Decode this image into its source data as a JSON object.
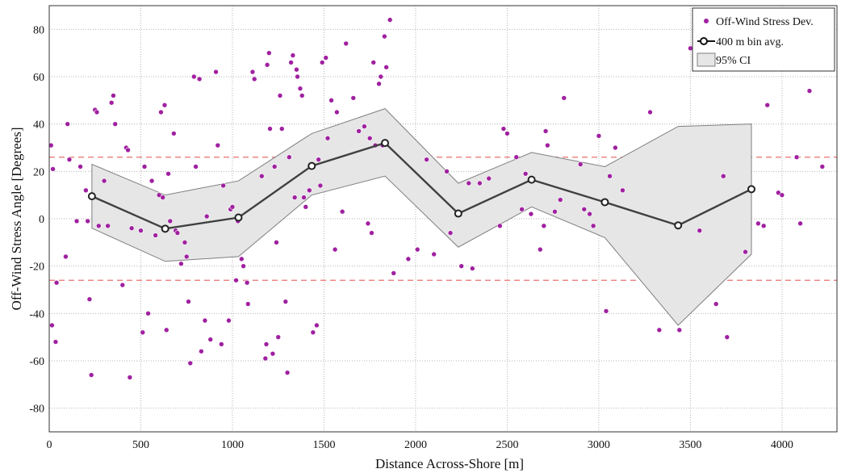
{
  "chart_data": {
    "type": "scatter",
    "xlabel": "Distance Across-Shore [m]",
    "ylabel": "Off-Wind Stress Angle [Degrees]",
    "xlim": [
      0,
      4300
    ],
    "ylim": [
      -90,
      90
    ],
    "xticks": [
      0,
      500,
      1000,
      1500,
      2000,
      2500,
      3000,
      3500,
      4000
    ],
    "yticks": [
      -80,
      -60,
      -40,
      -20,
      0,
      20,
      40,
      60,
      80
    ],
    "grid": true,
    "legend_position": "top-right",
    "reference_lines": [
      26,
      -26
    ],
    "colors": {
      "scatter": "#a020a0",
      "avg_line": "#404040",
      "ci_fill": "#e6e6e6",
      "ci_edge": "#7f7f7f",
      "reference": "#e8706e"
    },
    "series": [
      {
        "name": "Off-Wind Stress Dev.",
        "kind": "scatter",
        "points": [
          [
            10,
            31
          ],
          [
            15,
            -45
          ],
          [
            20,
            21
          ],
          [
            35,
            -52
          ],
          [
            40,
            -27
          ],
          [
            90,
            -16
          ],
          [
            100,
            40
          ],
          [
            110,
            25
          ],
          [
            150,
            -1
          ],
          [
            170,
            22
          ],
          [
            200,
            12
          ],
          [
            210,
            -1
          ],
          [
            220,
            -34
          ],
          [
            230,
            -66
          ],
          [
            250,
            46
          ],
          [
            260,
            45
          ],
          [
            270,
            -3
          ],
          [
            300,
            16
          ],
          [
            320,
            -3
          ],
          [
            340,
            49
          ],
          [
            350,
            52
          ],
          [
            360,
            40
          ],
          [
            400,
            -28
          ],
          [
            420,
            30
          ],
          [
            430,
            29
          ],
          [
            440,
            -67
          ],
          [
            450,
            -4
          ],
          [
            500,
            -5
          ],
          [
            510,
            -48
          ],
          [
            520,
            22
          ],
          [
            540,
            -40
          ],
          [
            560,
            16
          ],
          [
            580,
            -7
          ],
          [
            600,
            10
          ],
          [
            610,
            45
          ],
          [
            620,
            9
          ],
          [
            630,
            48
          ],
          [
            640,
            -47
          ],
          [
            650,
            19
          ],
          [
            660,
            -1
          ],
          [
            680,
            36
          ],
          [
            690,
            -5
          ],
          [
            700,
            -6
          ],
          [
            720,
            -19
          ],
          [
            740,
            -10
          ],
          [
            750,
            -16
          ],
          [
            760,
            -35
          ],
          [
            770,
            -61
          ],
          [
            790,
            60
          ],
          [
            800,
            22
          ],
          [
            820,
            59
          ],
          [
            830,
            -56
          ],
          [
            850,
            -43
          ],
          [
            860,
            1
          ],
          [
            880,
            -51
          ],
          [
            910,
            62
          ],
          [
            920,
            31
          ],
          [
            940,
            -53
          ],
          [
            950,
            14
          ],
          [
            980,
            -43
          ],
          [
            990,
            4
          ],
          [
            1000,
            5
          ],
          [
            1020,
            -26
          ],
          [
            1030,
            -1
          ],
          [
            1050,
            -17
          ],
          [
            1060,
            -20
          ],
          [
            1080,
            -27
          ],
          [
            1085,
            -36
          ],
          [
            1110,
            62
          ],
          [
            1120,
            59
          ],
          [
            1160,
            18
          ],
          [
            1180,
            -59
          ],
          [
            1185,
            -53
          ],
          [
            1190,
            65
          ],
          [
            1200,
            70
          ],
          [
            1205,
            38
          ],
          [
            1220,
            -57
          ],
          [
            1230,
            22
          ],
          [
            1240,
            -10
          ],
          [
            1250,
            -50
          ],
          [
            1260,
            52
          ],
          [
            1270,
            38
          ],
          [
            1290,
            -35
          ],
          [
            1300,
            -65
          ],
          [
            1310,
            26
          ],
          [
            1320,
            66
          ],
          [
            1330,
            69
          ],
          [
            1340,
            9
          ],
          [
            1350,
            63
          ],
          [
            1355,
            60
          ],
          [
            1370,
            55
          ],
          [
            1380,
            52
          ],
          [
            1390,
            9
          ],
          [
            1400,
            5
          ],
          [
            1420,
            12
          ],
          [
            1440,
            -48
          ],
          [
            1460,
            -45
          ],
          [
            1470,
            25
          ],
          [
            1480,
            14
          ],
          [
            1490,
            66
          ],
          [
            1510,
            68
          ],
          [
            1520,
            34
          ],
          [
            1540,
            50
          ],
          [
            1560,
            -13
          ],
          [
            1570,
            45
          ],
          [
            1600,
            3
          ],
          [
            1620,
            74
          ],
          [
            1660,
            51
          ],
          [
            1690,
            37
          ],
          [
            1720,
            39
          ],
          [
            1740,
            -2
          ],
          [
            1750,
            34
          ],
          [
            1760,
            -6
          ],
          [
            1770,
            66
          ],
          [
            1780,
            31
          ],
          [
            1800,
            57
          ],
          [
            1810,
            60
          ],
          [
            1820,
            31
          ],
          [
            1830,
            77
          ],
          [
            1840,
            64
          ],
          [
            1860,
            84
          ],
          [
            1880,
            -23
          ],
          [
            1960,
            -17
          ],
          [
            2010,
            -13
          ],
          [
            2060,
            25
          ],
          [
            2100,
            -15
          ],
          [
            2170,
            20
          ],
          [
            2190,
            -6
          ],
          [
            2250,
            -20
          ],
          [
            2290,
            15
          ],
          [
            2310,
            -21
          ],
          [
            2350,
            15
          ],
          [
            2400,
            17
          ],
          [
            2460,
            -3
          ],
          [
            2480,
            38
          ],
          [
            2500,
            36
          ],
          [
            2550,
            26
          ],
          [
            2580,
            4
          ],
          [
            2600,
            19
          ],
          [
            2630,
            2
          ],
          [
            2680,
            -13
          ],
          [
            2700,
            -3
          ],
          [
            2710,
            37
          ],
          [
            2720,
            31
          ],
          [
            2760,
            3
          ],
          [
            2790,
            8
          ],
          [
            2810,
            51
          ],
          [
            2900,
            23
          ],
          [
            2920,
            4
          ],
          [
            2950,
            2
          ],
          [
            2970,
            -3
          ],
          [
            3000,
            35
          ],
          [
            3040,
            -39
          ],
          [
            3060,
            18
          ],
          [
            3090,
            30
          ],
          [
            3130,
            12
          ],
          [
            3280,
            45
          ],
          [
            3330,
            -47
          ],
          [
            3440,
            -47
          ],
          [
            3500,
            72
          ],
          [
            3550,
            -5
          ],
          [
            3640,
            -36
          ],
          [
            3680,
            18
          ],
          [
            3700,
            -50
          ],
          [
            3800,
            -14
          ],
          [
            3830,
            12
          ],
          [
            3870,
            -2
          ],
          [
            3900,
            -3
          ],
          [
            3920,
            48
          ],
          [
            3980,
            11
          ],
          [
            4000,
            10
          ],
          [
            4080,
            26
          ],
          [
            4100,
            -2
          ],
          [
            4150,
            54
          ],
          [
            4220,
            22
          ]
        ]
      },
      {
        "name": "400 m bin avg.",
        "kind": "line",
        "x": [
          233,
          633,
          1033,
          1433,
          1833,
          2233,
          2633,
          3033,
          3433,
          3833
        ],
        "y": [
          9.5,
          -4.2,
          0.5,
          22.3,
          32,
          2.2,
          16.5,
          7,
          -2.8,
          12.5
        ]
      },
      {
        "name": "95% CI",
        "kind": "band",
        "x": [
          233,
          633,
          1033,
          1433,
          1833,
          2233,
          2633,
          3033,
          3433,
          3833
        ],
        "upper": [
          23,
          10,
          16,
          36,
          46.5,
          15,
          28,
          22,
          39,
          40
        ],
        "lower": [
          -4,
          -18,
          -16,
          10,
          18,
          -12,
          5,
          -8,
          -45,
          -15
        ]
      }
    ]
  }
}
